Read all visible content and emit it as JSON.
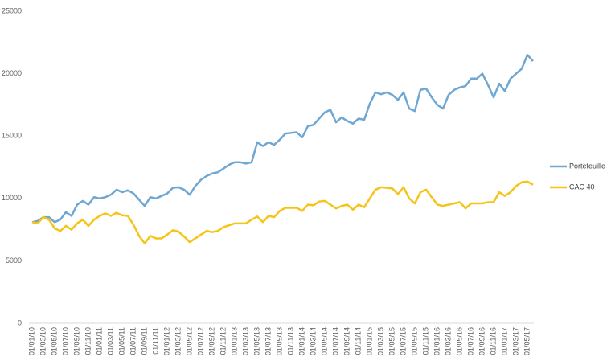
{
  "chart_data": {
    "type": "line",
    "categories": [
      "01/01/10",
      null,
      "01/03/10",
      null,
      "01/05/10",
      null,
      "01/07/10",
      null,
      "01/09/10",
      null,
      "01/11/10",
      null,
      "01/01/11",
      null,
      "01/03/11",
      null,
      "01/05/11",
      null,
      "01/07/11",
      null,
      "01/09/11",
      null,
      "01/11/11",
      null,
      "01/01/12",
      null,
      "01/03/12",
      null,
      "01/05/12",
      null,
      "01/07/12",
      null,
      "01/09/12",
      null,
      "01/11/12",
      null,
      "01/01/13",
      null,
      "01/03/13",
      null,
      "01/05/13",
      null,
      "01/07/13",
      null,
      "01/09/13",
      null,
      "01/11/13",
      null,
      "01/01/14",
      null,
      "01/03/14",
      null,
      "01/05/14",
      null,
      "01/07/14",
      null,
      "01/09/14",
      null,
      "01/11/14",
      null,
      "01/01/15",
      null,
      "01/03/15",
      null,
      "01/05/15",
      null,
      "01/07/15",
      null,
      "01/09/15",
      null,
      "01/11/15",
      null,
      "01/01/16",
      null,
      "01/03/16",
      null,
      "01/05/16",
      null,
      "01/07/16",
      null,
      "01/09/16",
      null,
      "01/11/16",
      null,
      "01/01/17",
      null,
      "01/03/17",
      null,
      "01/05/17",
      null
    ],
    "series": [
      {
        "name": "Portefeuille",
        "color": "#6fa7d3",
        "values": [
          8100,
          8200,
          8500,
          8500,
          8100,
          8300,
          8900,
          8600,
          9500,
          9800,
          9500,
          10100,
          10000,
          10100,
          10300,
          10700,
          10500,
          10650,
          10400,
          9900,
          9400,
          10100,
          10000,
          10200,
          10400,
          10850,
          10900,
          10700,
          10300,
          11000,
          11500,
          11800,
          12000,
          12100,
          12400,
          12700,
          12900,
          12900,
          12800,
          12900,
          14500,
          14200,
          14500,
          14300,
          14700,
          15200,
          15250,
          15300,
          14900,
          15800,
          15900,
          16400,
          16900,
          17100,
          16100,
          16500,
          16200,
          16000,
          16400,
          16300,
          17600,
          18500,
          18350,
          18500,
          18300,
          17900,
          18500,
          17200,
          17000,
          18700,
          18800,
          18100,
          17500,
          17200,
          18300,
          18700,
          18900,
          19000,
          19600,
          19600,
          20000,
          19100,
          18100,
          19200,
          18600,
          19600,
          20000,
          20400,
          21500,
          21000
        ]
      },
      {
        "name": "CAC 40",
        "color": "#f5c416",
        "values": [
          8100,
          8000,
          8500,
          8300,
          7600,
          7400,
          7800,
          7500,
          8000,
          8300,
          7800,
          8300,
          8600,
          8800,
          8600,
          8850,
          8650,
          8600,
          7900,
          7000,
          6400,
          7000,
          6800,
          6800,
          7100,
          7450,
          7350,
          6950,
          6500,
          6800,
          7100,
          7400,
          7300,
          7400,
          7700,
          7850,
          8000,
          8000,
          8000,
          8300,
          8550,
          8100,
          8600,
          8500,
          9000,
          9250,
          9250,
          9250,
          9000,
          9500,
          9450,
          9750,
          9800,
          9500,
          9200,
          9400,
          9500,
          9100,
          9500,
          9300,
          10000,
          10700,
          10900,
          10850,
          10800,
          10350,
          10900,
          10000,
          9600,
          10500,
          10700,
          10100,
          9500,
          9400,
          9500,
          9600,
          9700,
          9200,
          9600,
          9600,
          9600,
          9700,
          9700,
          10500,
          10200,
          10500,
          11000,
          11300,
          11350,
          11100
        ]
      }
    ],
    "ylim": [
      0,
      25000
    ],
    "yticks": [
      0,
      5000,
      10000,
      15000,
      20000,
      25000
    ],
    "grid": false,
    "legend": "right"
  }
}
